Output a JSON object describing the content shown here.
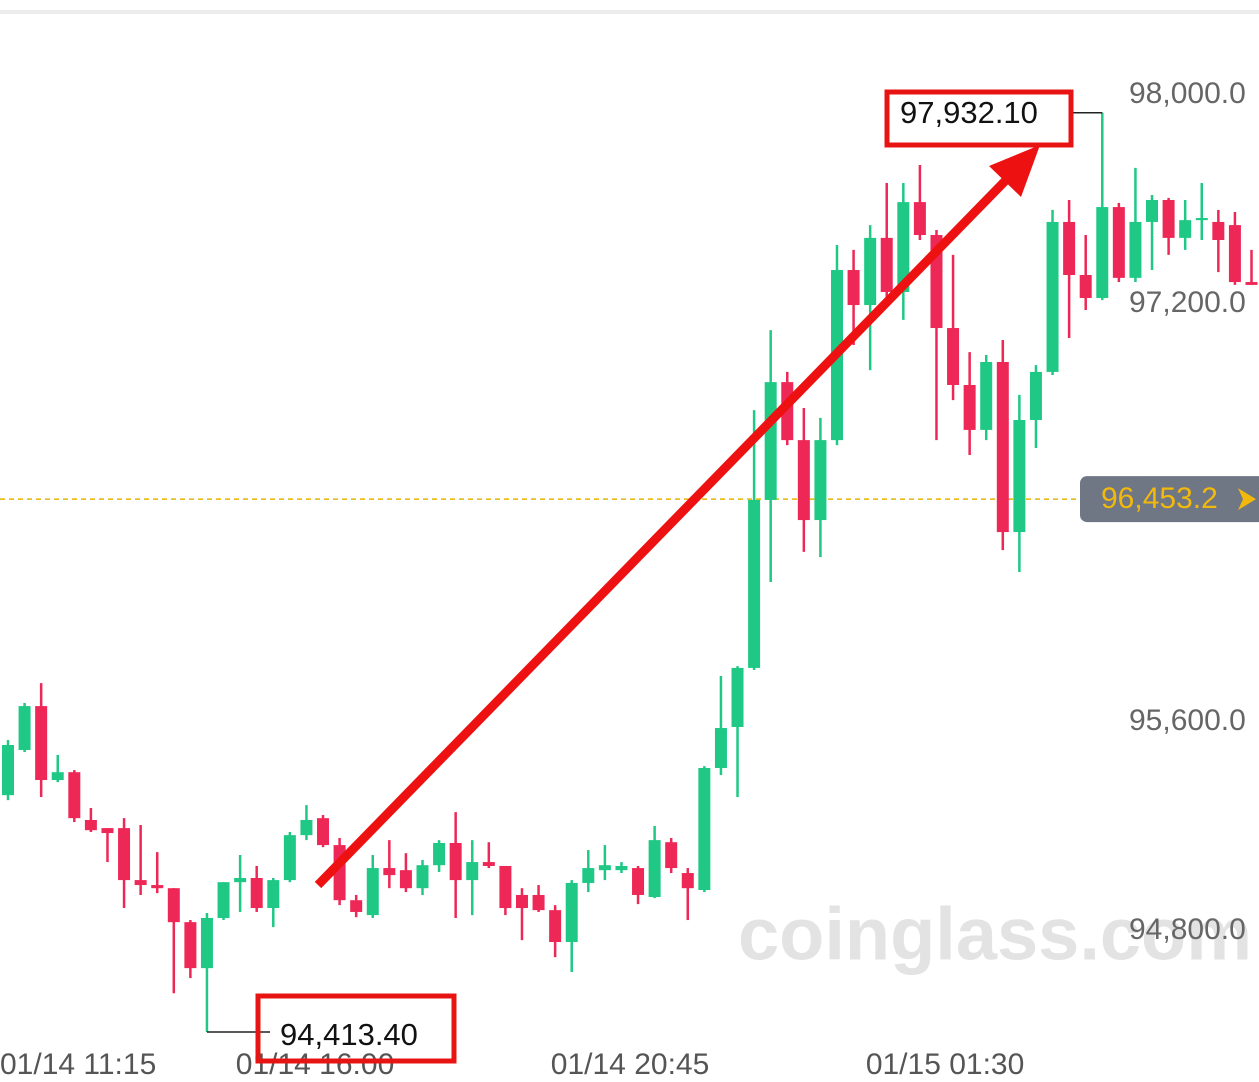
{
  "chart_data": {
    "type": "candlestick",
    "categories": [
      "01/14 11:15",
      null,
      null,
      null,
      null,
      null,
      null,
      null,
      null,
      null,
      null,
      null,
      null,
      null,
      null,
      null,
      null,
      null,
      null,
      "01/14 16:00",
      null,
      null,
      null,
      null,
      null,
      null,
      null,
      null,
      null,
      null,
      null,
      null,
      null,
      null,
      null,
      null,
      null,
      null,
      "01/14 20:45",
      null,
      null,
      null,
      null,
      null,
      null,
      null,
      null,
      null,
      null,
      null,
      null,
      null,
      null,
      null,
      null,
      null,
      null,
      "01/15 01:30",
      null,
      null,
      null,
      null,
      null,
      null,
      null,
      null,
      null,
      null,
      null,
      null,
      null,
      null,
      null,
      null,
      null,
      null
    ],
    "open": [
      95320,
      95493,
      95661,
      95378,
      95408,
      95225,
      95194,
      95194,
      94995,
      94976,
      94964,
      94834,
      94658,
      94850,
      94987,
      95003,
      94888,
      94995,
      95167,
      95232,
      95129,
      94918,
      94861,
      95041,
      95033,
      94964,
      95052,
      95137,
      94995,
      95064,
      95049,
      94938,
      94938,
      94880,
      94758,
      94984,
      95033,
      95033,
      95041,
      94930,
      95140,
      95022,
      94957,
      95424,
      95581,
      95807,
      96450,
      96901,
      96679,
      96373,
      96679,
      97330,
      97196,
      97453,
      97246,
      97590,
      97464,
      97108,
      96890,
      96718,
      96978,
      96327,
      96756,
      96940,
      97514,
      97311,
      97223,
      97571,
      97300,
      97514,
      97598,
      97453,
      97521,
      97514,
      97502,
      97284
    ],
    "high": [
      95531,
      95673,
      95749,
      95474,
      95416,
      95271,
      95194,
      95232,
      95206,
      95102,
      94964,
      94842,
      94869,
      94987,
      95091,
      95049,
      95003,
      95179,
      95282,
      95244,
      95156,
      94938,
      95091,
      95148,
      95098,
      95072,
      95148,
      95255,
      95148,
      95140,
      95049,
      94964,
      94976,
      94899,
      94995,
      95110,
      95129,
      95064,
      95049,
      95202,
      95156,
      95041,
      95431,
      95776,
      95814,
      96794,
      97100,
      96940,
      96802,
      96764,
      97426,
      97407,
      97502,
      97663,
      97663,
      97732,
      97483,
      97388,
      97016,
      97005,
      97062,
      96852,
      96966,
      97560,
      97598,
      97464,
      97932.1,
      97587,
      97721,
      97617,
      97606,
      97598,
      97663,
      97560,
      97552,
      97407
    ],
    "low": [
      95301,
      95485,
      95313,
      95370,
      95217,
      95179,
      95064,
      94888,
      94938,
      94945,
      94562,
      94620,
      94413.4,
      94842,
      94873,
      94873,
      94815,
      94987,
      95148,
      95121,
      94899,
      94853,
      94850,
      94964,
      94949,
      94938,
      95026,
      94850,
      94861,
      95041,
      94861,
      94765,
      94873,
      94700,
      94643,
      94949,
      94995,
      95022,
      94903,
      94926,
      95022,
      94842,
      94949,
      95397,
      95313,
      95799,
      96136,
      96660,
      96251,
      96231,
      96660,
      97043,
      96947,
      97227,
      97139,
      97445,
      96679,
      96832,
      96622,
      96679,
      96258,
      96174,
      96649,
      96928,
      97070,
      97177,
      97215,
      97284,
      97284,
      97330,
      97388,
      97407,
      97445,
      97322,
      97273,
      97273
    ],
    "close": [
      95512,
      95661,
      95378,
      95408,
      95232,
      95186,
      95175,
      94995,
      94976,
      94964,
      94834,
      94658,
      94850,
      94987,
      95003,
      94888,
      94995,
      95167,
      95225,
      95129,
      94918,
      94873,
      95041,
      95014,
      94964,
      95052,
      95137,
      94995,
      95064,
      95049,
      94888,
      94888,
      94880,
      94758,
      94984,
      95041,
      95052,
      95049,
      94938,
      95148,
      95041,
      94964,
      95424,
      95577,
      95807,
      96450,
      96901,
      96679,
      96373,
      96679,
      97330,
      97196,
      97453,
      97246,
      97590,
      97464,
      97108,
      96890,
      96718,
      96978,
      96327,
      96756,
      96940,
      97514,
      97311,
      97223,
      97571,
      97300,
      97514,
      97598,
      97453,
      97521,
      97529,
      97445,
      97284,
      97273
    ],
    "colors": {
      "up": "#1fc985",
      "down": "#ee2856"
    },
    "ylim": [
      94350,
      98300
    ],
    "yticks": [
      {
        "value": 98000,
        "label": "98,000.0"
      },
      {
        "value": 97200,
        "label": "97,200.0"
      },
      {
        "value": 95600,
        "label": "95,600.0"
      },
      {
        "value": 94800,
        "label": "94,800.0"
      }
    ],
    "last_price": {
      "value": 96453.2,
      "label": "96,453.2"
    },
    "annotations": [
      {
        "value": 97932.1,
        "label": "97,932.10"
      },
      {
        "value": 94413.4,
        "label": "94,413.40"
      }
    ],
    "watermark": "coinglass.com"
  }
}
